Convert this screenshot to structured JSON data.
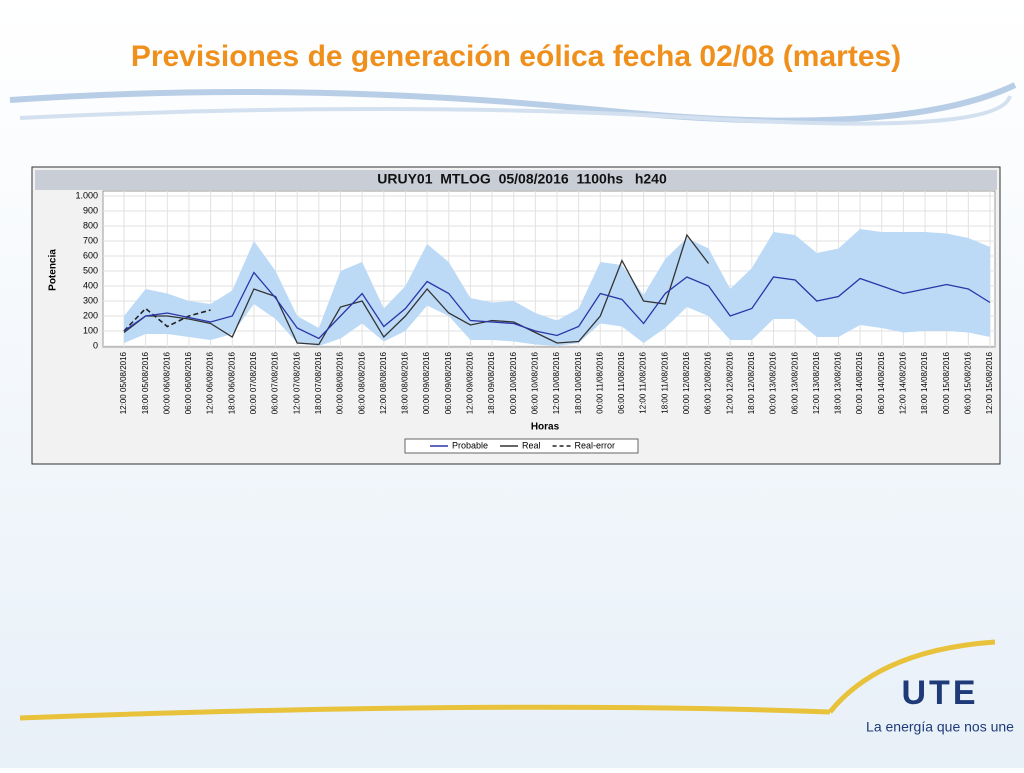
{
  "header": {
    "title": "Previsiones de generación eólica fecha 02/08 (martes)"
  },
  "footer": {
    "logo": "UTE",
    "slogan": "La energía que nos une"
  },
  "chart_data": {
    "type": "line",
    "title": "URUY01  MTLOG  05/08/2016  1100hs   h240",
    "y_label": "Potencia",
    "x_label": "Horas",
    "categories": [
      "12:00 05/08/2016",
      "18:00 05/08/2016",
      "00:00 06/08/2016",
      "06:00 06/08/2016",
      "12:00 06/08/2016",
      "18:00 06/08/2016",
      "00:00 07/08/2016",
      "06:00 07/08/2016",
      "12:00 07/08/2016",
      "18:00 07/08/2016",
      "00:00 08/08/2016",
      "06:00 08/08/2016",
      "12:00 08/08/2016",
      "18:00 08/08/2016",
      "00:00 09/08/2016",
      "06:00 09/08/2016",
      "12:00 09/08/2016",
      "18:00 09/08/2016",
      "00:00 10/08/2016",
      "06:00 10/08/2016",
      "12:00 10/08/2016",
      "18:00 10/08/2016",
      "00:00 11/08/2016",
      "06:00 11/08/2016",
      "12:00 11/08/2016",
      "18:00 11/08/2016",
      "00:00 12/08/2016",
      "06:00 12/08/2016",
      "12:00 12/08/2016",
      "18:00 12/08/2016",
      "00:00 13/08/2016",
      "06:00 13/08/2016",
      "12:00 13/08/2016",
      "18:00 13/08/2016",
      "00:00 14/08/2016",
      "06:00 14/08/2016",
      "12:00 14/08/2016",
      "18:00 14/08/2016",
      "00:00 15/08/2016",
      "06:00 15/08/2016",
      "12:00 15/08/2016"
    ],
    "band": {
      "color": "#bcdaf6",
      "upper": [
        200,
        380,
        350,
        300,
        280,
        370,
        700,
        500,
        200,
        120,
        500,
        560,
        250,
        400,
        680,
        560,
        320,
        290,
        300,
        220,
        170,
        250,
        560,
        540,
        340,
        580,
        720,
        650,
        380,
        520,
        760,
        740,
        620,
        650,
        780,
        760,
        760,
        760,
        750,
        720,
        660
      ],
      "lower": [
        20,
        80,
        80,
        60,
        40,
        80,
        280,
        180,
        20,
        0,
        50,
        150,
        30,
        100,
        270,
        200,
        40,
        40,
        30,
        10,
        0,
        20,
        150,
        130,
        20,
        120,
        260,
        200,
        40,
        40,
        180,
        180,
        60,
        60,
        140,
        120,
        90,
        100,
        100,
        90,
        60
      ]
    },
    "series": [
      {
        "name": "Probable",
        "color": "#2a35a8",
        "dash": false,
        "values": [
          100,
          200,
          220,
          190,
          160,
          200,
          490,
          320,
          120,
          50,
          200,
          350,
          130,
          250,
          430,
          350,
          170,
          160,
          150,
          100,
          70,
          130,
          350,
          310,
          150,
          350,
          460,
          400,
          200,
          250,
          460,
          440,
          300,
          330,
          450,
          400,
          350,
          380,
          410,
          380,
          290
        ]
      },
      {
        "name": "Real",
        "color": "#333333",
        "dash": false,
        "values": [
          90,
          200,
          200,
          180,
          150,
          60,
          380,
          330,
          20,
          10,
          260,
          300,
          60,
          200,
          380,
          220,
          140,
          170,
          160,
          90,
          20,
          30,
          200,
          570,
          300,
          280,
          740,
          550,
          null,
          null,
          null,
          null,
          null,
          null,
          null,
          null,
          null,
          null,
          null,
          null,
          null
        ]
      },
      {
        "name": "Real-error",
        "color": "#222222",
        "dash": true,
        "values": [
          100,
          250,
          130,
          200,
          240,
          null,
          null,
          null,
          null,
          null,
          null,
          null,
          null,
          null,
          null,
          null,
          null,
          null,
          null,
          null,
          null,
          null,
          null,
          null,
          null,
          null,
          null,
          null,
          null,
          null,
          null,
          null,
          null,
          null,
          null,
          null,
          null,
          null,
          null,
          null,
          null
        ]
      }
    ],
    "ylim": [
      0,
      1000
    ],
    "yticks": [
      0,
      100,
      200,
      300,
      400,
      500,
      600,
      700,
      800,
      900,
      {
        "value": 1000,
        "label": "1.000"
      }
    ],
    "grid": true
  }
}
